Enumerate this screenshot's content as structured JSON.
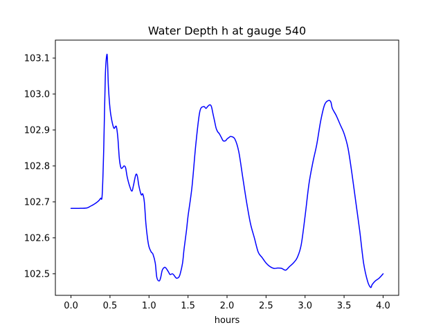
{
  "chart_data": {
    "type": "line",
    "title": "Water Depth h at gauge 540",
    "xlabel": "hours",
    "ylabel": "",
    "xlim": [
      -0.2,
      4.2
    ],
    "ylim": [
      102.44,
      103.15
    ],
    "xticks": [
      0.0,
      0.5,
      1.0,
      1.5,
      2.0,
      2.5,
      3.0,
      3.5,
      4.0
    ],
    "xtick_labels": [
      "0.0",
      "0.5",
      "1.0",
      "1.5",
      "2.0",
      "2.5",
      "3.0",
      "3.5",
      "4.0"
    ],
    "yticks": [
      102.5,
      102.6,
      102.7,
      102.8,
      102.9,
      103.0,
      103.1
    ],
    "ytick_labels": [
      "102.5",
      "102.6",
      "102.7",
      "102.8",
      "102.9",
      "103.0",
      "103.1"
    ],
    "grid": false,
    "series": [
      {
        "color": "#0000ff",
        "x": [
          0.0,
          0.1,
          0.2,
          0.25,
          0.3,
          0.35,
          0.38,
          0.4,
          0.42,
          0.44,
          0.46,
          0.47,
          0.48,
          0.5,
          0.52,
          0.55,
          0.58,
          0.6,
          0.62,
          0.64,
          0.66,
          0.68,
          0.7,
          0.72,
          0.75,
          0.78,
          0.8,
          0.83,
          0.85,
          0.87,
          0.9,
          0.92,
          0.94,
          0.96,
          0.98,
          1.0,
          1.03,
          1.05,
          1.08,
          1.1,
          1.13,
          1.15,
          1.17,
          1.2,
          1.22,
          1.25,
          1.27,
          1.3,
          1.32,
          1.35,
          1.38,
          1.4,
          1.43,
          1.45,
          1.48,
          1.5,
          1.55,
          1.6,
          1.65,
          1.7,
          1.73,
          1.75,
          1.78,
          1.8,
          1.82,
          1.84,
          1.86,
          1.88,
          1.9,
          1.93,
          1.95,
          1.98,
          2.0,
          2.03,
          2.05,
          2.1,
          2.15,
          2.2,
          2.25,
          2.3,
          2.35,
          2.4,
          2.45,
          2.5,
          2.55,
          2.6,
          2.65,
          2.7,
          2.75,
          2.8,
          2.85,
          2.9,
          2.95,
          3.0,
          3.05,
          3.1,
          3.15,
          3.2,
          3.25,
          3.3,
          3.33,
          3.35,
          3.4,
          3.45,
          3.5,
          3.55,
          3.6,
          3.65,
          3.7,
          3.75,
          3.8,
          3.84,
          3.86,
          3.9,
          3.95,
          4.0
        ],
        "y": [
          102.682,
          102.682,
          102.683,
          102.688,
          102.694,
          102.702,
          102.71,
          102.72,
          102.85,
          103.05,
          103.11,
          103.08,
          103.02,
          102.96,
          102.93,
          102.905,
          102.91,
          102.88,
          102.82,
          102.795,
          102.795,
          102.8,
          102.795,
          102.77,
          102.745,
          102.73,
          102.745,
          102.775,
          102.772,
          102.745,
          102.72,
          102.722,
          102.7,
          102.64,
          102.6,
          102.575,
          102.56,
          102.555,
          102.53,
          102.49,
          102.48,
          102.49,
          102.51,
          102.518,
          102.515,
          102.505,
          102.498,
          102.5,
          102.496,
          102.488,
          102.49,
          102.5,
          102.53,
          102.57,
          102.62,
          102.66,
          102.74,
          102.86,
          102.95,
          102.965,
          102.96,
          102.965,
          102.97,
          102.965,
          102.945,
          102.925,
          102.905,
          102.895,
          102.89,
          102.878,
          102.87,
          102.87,
          102.875,
          102.88,
          102.882,
          102.875,
          102.84,
          102.77,
          102.7,
          102.64,
          102.6,
          102.56,
          102.545,
          102.53,
          102.52,
          102.515,
          102.516,
          102.515,
          102.51,
          102.52,
          102.53,
          102.545,
          102.58,
          102.66,
          102.75,
          102.81,
          102.86,
          102.925,
          102.97,
          102.982,
          102.978,
          102.96,
          102.94,
          102.915,
          102.89,
          102.85,
          102.78,
          102.7,
          102.62,
          102.53,
          102.48,
          102.462,
          102.47,
          102.48,
          102.488,
          102.5
        ]
      }
    ]
  }
}
